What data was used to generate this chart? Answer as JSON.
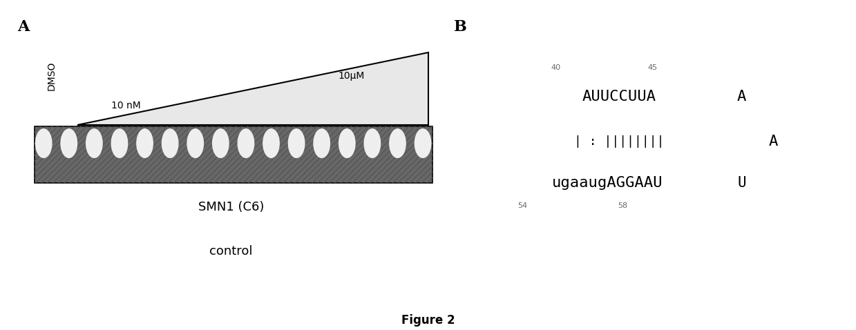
{
  "panel_A_label": "A",
  "panel_B_label": "B",
  "figure_label": "Figure 2",
  "dmso_label": "DMSO",
  "low_conc_label": "10 nM",
  "high_conc_label": "10μM",
  "smn1_label": "SMN1 (C6)",
  "control_label": "control",
  "n_bands": 16,
  "rna_top_seq": "AUUCCUUA",
  "rna_bottom_seq": "ugaaugAGGAAU",
  "rna_bonds": "| : ||||||||",
  "rna_right_A1": "A",
  "rna_right_A2": "A",
  "rna_right_U": "U",
  "num_40": "40",
  "num_45": "45",
  "num_54": "54",
  "num_58": "58",
  "bg_color": "#ffffff"
}
